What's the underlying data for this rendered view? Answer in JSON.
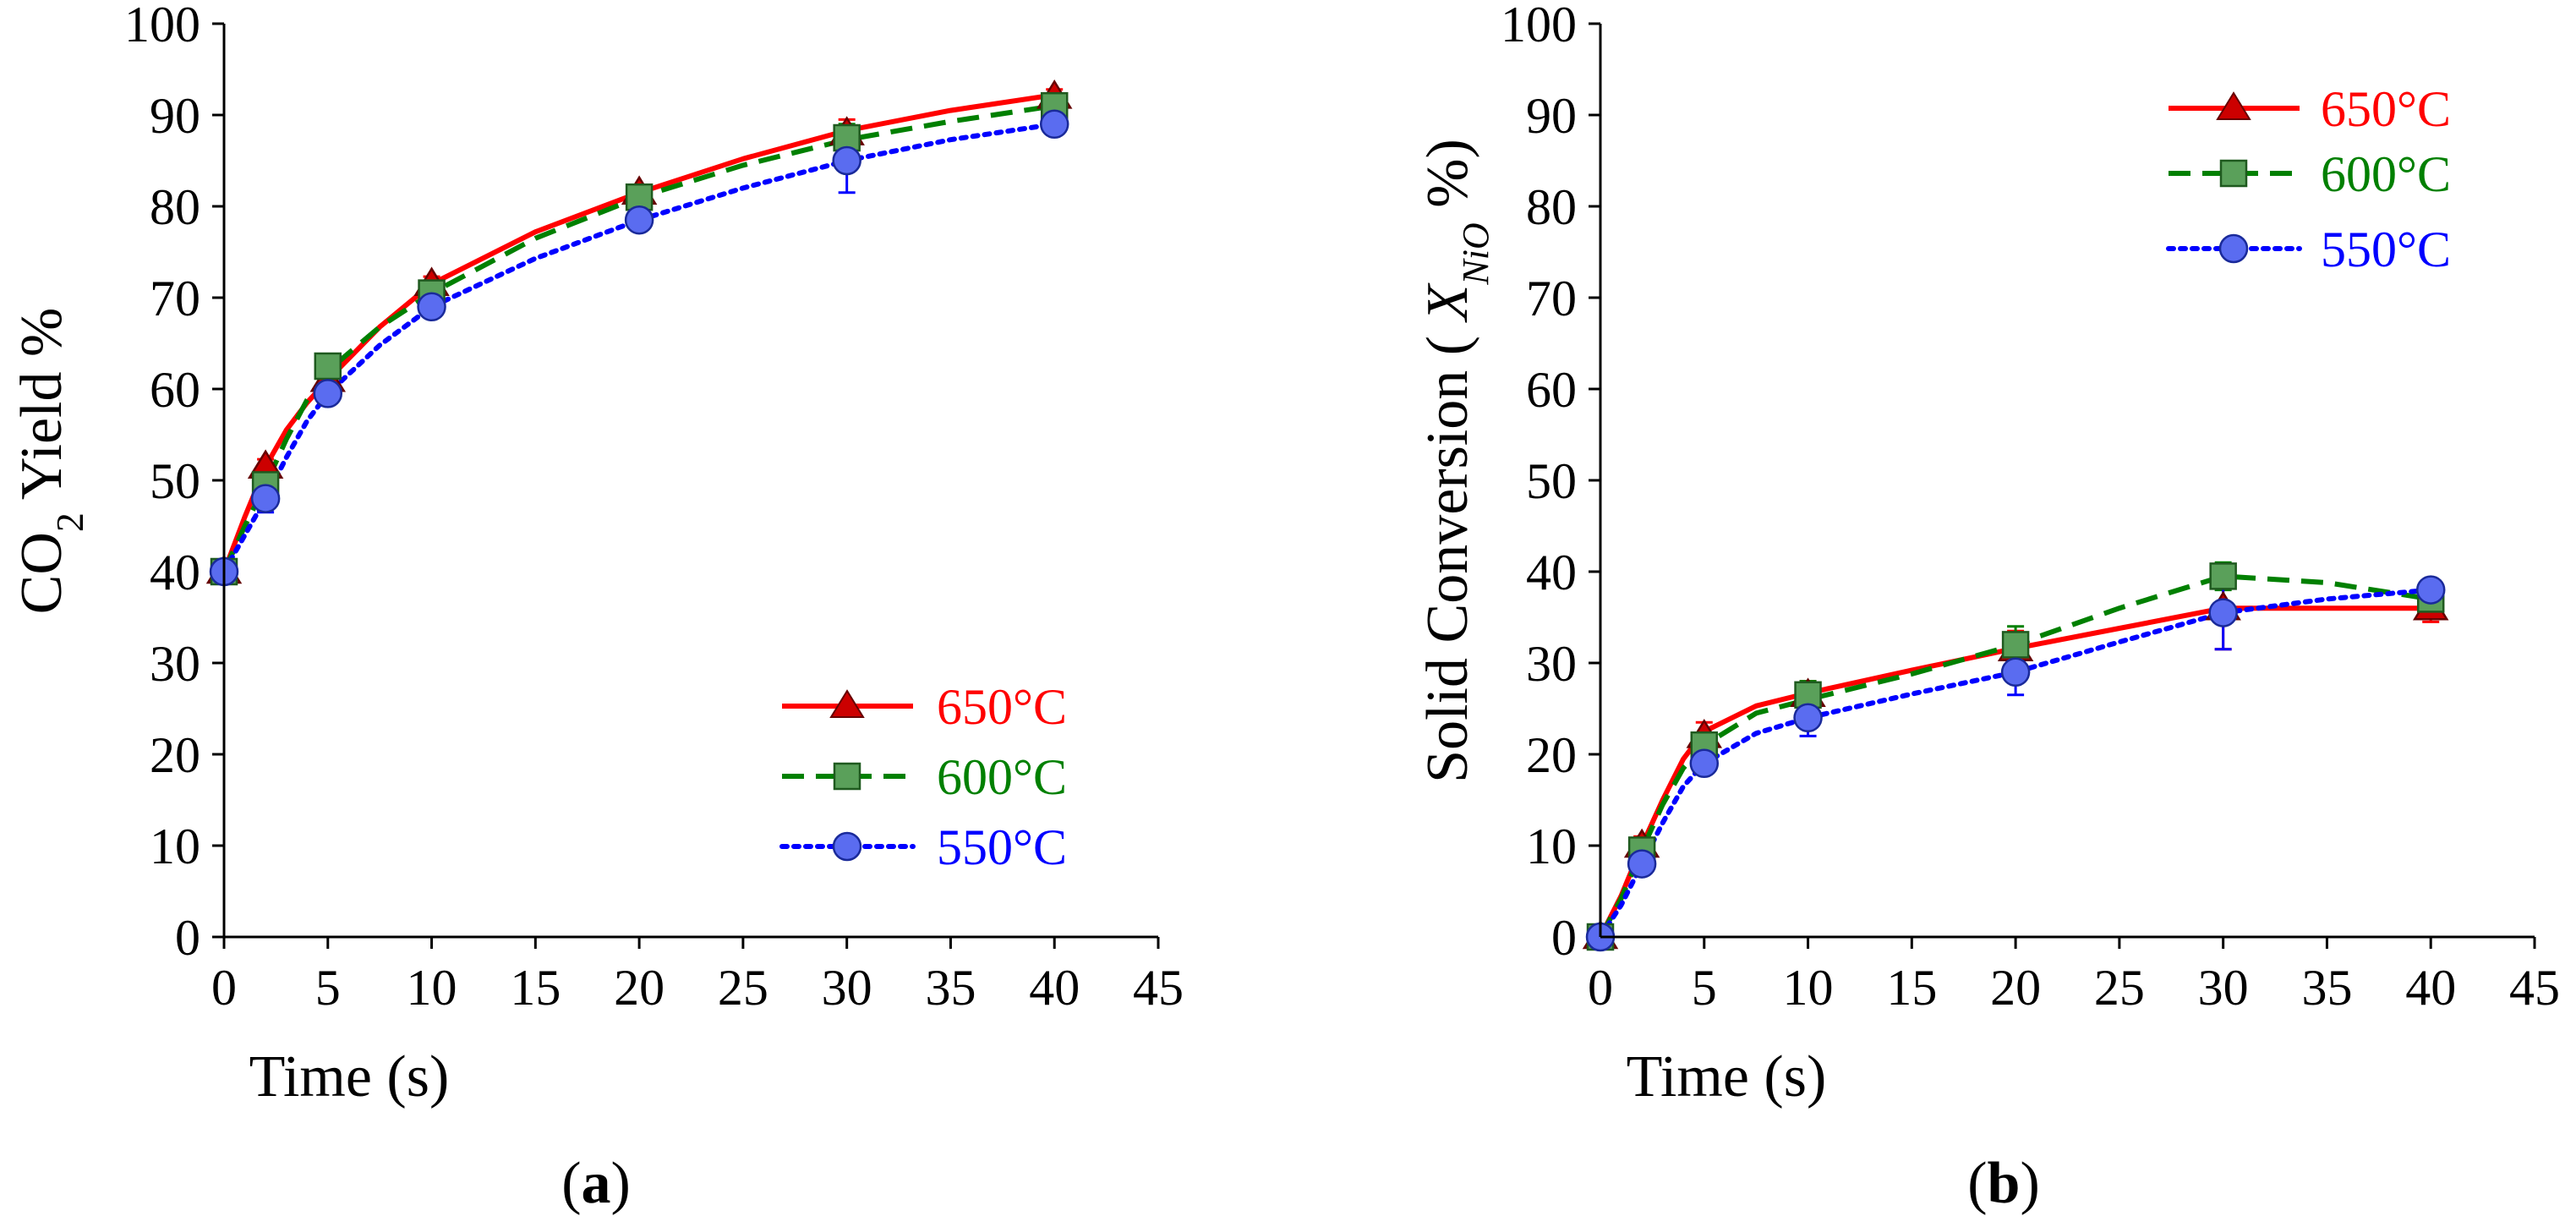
{
  "chart_data": [
    {
      "type": "line",
      "panel_label": "a",
      "xlabel": "Time (s)",
      "ylabel": {
        "prefix": "CO",
        "subscript": "2",
        "suffix": " Yield %"
      },
      "xlim": [
        0,
        45
      ],
      "ylim": [
        0,
        100
      ],
      "xticks": [
        0,
        5,
        10,
        15,
        20,
        25,
        30,
        35,
        40,
        45
      ],
      "yticks": [
        0,
        10,
        20,
        30,
        40,
        50,
        60,
        70,
        80,
        90,
        100
      ],
      "legend_position": "bottom-right",
      "series": [
        {
          "name": "650°C",
          "color": "#ff0000",
          "marker": "triangle",
          "line_style": "solid",
          "points": [
            [
              0,
              40
            ],
            [
              2,
              51.5
            ],
            [
              5,
              61
            ],
            [
              10,
              71.5
            ],
            [
              20,
              81.5
            ],
            [
              30,
              88
            ],
            [
              40,
              92
            ]
          ],
          "errors": [
            0,
            0.8,
            0.8,
            0.8,
            0.8,
            1.5,
            0.8
          ],
          "curve": [
            [
              0,
              40
            ],
            [
              1,
              46
            ],
            [
              2,
              51.5
            ],
            [
              3,
              55.5
            ],
            [
              4,
              58.5
            ],
            [
              5,
              61
            ],
            [
              7.5,
              66.8
            ],
            [
              10,
              71.5
            ],
            [
              15,
              77.2
            ],
            [
              20,
              81.5
            ],
            [
              25,
              85.2
            ],
            [
              30,
              88.3
            ],
            [
              35,
              90.5
            ],
            [
              40,
              92.2
            ]
          ]
        },
        {
          "name": "600°C",
          "color": "#008000",
          "marker": "square",
          "line_style": "dashed",
          "points": [
            [
              0,
              40
            ],
            [
              2,
              49.5
            ],
            [
              5,
              62.5
            ],
            [
              10,
              70.5
            ],
            [
              20,
              81
            ],
            [
              30,
              87.5
            ],
            [
              40,
              91
            ]
          ],
          "errors": [
            0,
            1,
            1,
            1,
            1,
            1.5,
            1
          ],
          "curve": [
            [
              0,
              40
            ],
            [
              1,
              45
            ],
            [
              2,
              49.5
            ],
            [
              3,
              54.5
            ],
            [
              4,
              58.8
            ],
            [
              5,
              62
            ],
            [
              7.5,
              66.8
            ],
            [
              10,
              70.5
            ],
            [
              15,
              76.5
            ],
            [
              20,
              81
            ],
            [
              25,
              84.5
            ],
            [
              30,
              87.3
            ],
            [
              35,
              89.3
            ],
            [
              40,
              91
            ]
          ]
        },
        {
          "name": "550°C",
          "color": "#0000ff",
          "marker": "circle",
          "line_style": "dotted",
          "points": [
            [
              0,
              40
            ],
            [
              2,
              48
            ],
            [
              5,
              59.5
            ],
            [
              10,
              69
            ],
            [
              20,
              78.5
            ],
            [
              30,
              85
            ],
            [
              40,
              89
            ]
          ],
          "errors": [
            0,
            1.5,
            1,
            1,
            1,
            3.5,
            1
          ],
          "curve": [
            [
              0,
              40
            ],
            [
              1,
              44
            ],
            [
              2,
              48
            ],
            [
              3,
              52.5
            ],
            [
              4,
              56.5
            ],
            [
              5,
              59.5
            ],
            [
              7.5,
              64.8
            ],
            [
              10,
              69
            ],
            [
              15,
              74.3
            ],
            [
              20,
              78.5
            ],
            [
              25,
              82
            ],
            [
              30,
              85
            ],
            [
              35,
              87.3
            ],
            [
              40,
              89
            ]
          ]
        }
      ]
    },
    {
      "type": "line",
      "panel_label": "b",
      "xlabel": "Time (s)",
      "ylabel": {
        "prefix": "Solid Conversion ( ",
        "italic": "X",
        "subscript": "NiO",
        "suffix": " %)"
      },
      "xlim": [
        0,
        45
      ],
      "ylim": [
        0,
        100
      ],
      "xticks": [
        0,
        5,
        10,
        15,
        20,
        25,
        30,
        35,
        40,
        45
      ],
      "yticks": [
        0,
        10,
        20,
        30,
        40,
        50,
        60,
        70,
        80,
        90,
        100
      ],
      "legend_position": "top-right",
      "series": [
        {
          "name": "650°C",
          "color": "#ff0000",
          "marker": "triangle",
          "line_style": "solid",
          "points": [
            [
              0,
              0
            ],
            [
              2,
              10
            ],
            [
              5,
              22
            ],
            [
              10,
              26.5
            ],
            [
              20,
              31.5
            ],
            [
              30,
              36
            ],
            [
              40,
              36
            ]
          ],
          "errors": [
            0,
            1,
            1.5,
            1.5,
            2,
            4.5,
            1.5
          ],
          "curve": [
            [
              0,
              0
            ],
            [
              1,
              4.5
            ],
            [
              2,
              10
            ],
            [
              3,
              15
            ],
            [
              4,
              19.5
            ],
            [
              5,
              22.5
            ],
            [
              7.5,
              25.3
            ],
            [
              10,
              26.7
            ],
            [
              15,
              29.2
            ],
            [
              20,
              31.6
            ],
            [
              25,
              33.8
            ],
            [
              30,
              36
            ],
            [
              35,
              36
            ],
            [
              40,
              36
            ]
          ]
        },
        {
          "name": "600°C",
          "color": "#008000",
          "marker": "square",
          "line_style": "dashed",
          "points": [
            [
              0,
              0
            ],
            [
              2,
              9.5
            ],
            [
              5,
              21
            ],
            [
              10,
              26.5
            ],
            [
              20,
              32
            ],
            [
              30,
              39.5
            ],
            [
              40,
              37
            ]
          ],
          "errors": [
            0,
            1,
            1,
            1.5,
            2,
            1.5,
            1.5
          ],
          "curve": [
            [
              0,
              0
            ],
            [
              1,
              4.2
            ],
            [
              2,
              9.5
            ],
            [
              3,
              14.5
            ],
            [
              4,
              18.5
            ],
            [
              5,
              21
            ],
            [
              7.5,
              24.5
            ],
            [
              10,
              26
            ],
            [
              15,
              28.8
            ],
            [
              20,
              32
            ],
            [
              25,
              36
            ],
            [
              30,
              39.5
            ],
            [
              35,
              38.8
            ],
            [
              40,
              37
            ]
          ]
        },
        {
          "name": "550°C",
          "color": "#0000ff",
          "marker": "circle",
          "line_style": "dotted",
          "points": [
            [
              0,
              0
            ],
            [
              2,
              8
            ],
            [
              5,
              19
            ],
            [
              10,
              24
            ],
            [
              20,
              29
            ],
            [
              30,
              35.5
            ],
            [
              40,
              38
            ]
          ],
          "errors": [
            0,
            1,
            1,
            2,
            2.5,
            4,
            1
          ],
          "curve": [
            [
              0,
              0
            ],
            [
              1,
              3.5
            ],
            [
              2,
              8
            ],
            [
              3,
              12.5
            ],
            [
              4,
              16.5
            ],
            [
              5,
              19
            ],
            [
              7.5,
              22.3
            ],
            [
              10,
              24
            ],
            [
              15,
              26.6
            ],
            [
              20,
              29
            ],
            [
              25,
              32.3
            ],
            [
              30,
              35.5
            ],
            [
              35,
              37
            ],
            [
              40,
              38
            ]
          ]
        }
      ]
    }
  ]
}
